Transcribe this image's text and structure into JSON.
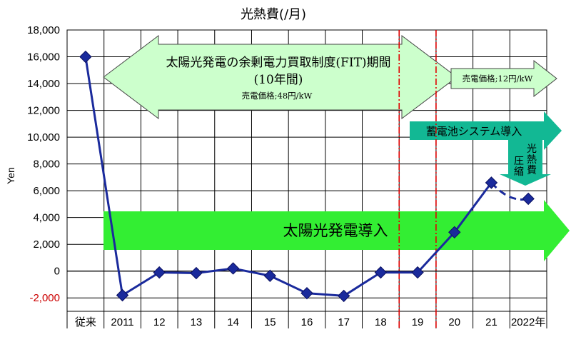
{
  "chart_data": {
    "type": "line",
    "title": "光熱費(/月)",
    "ylabel": "Yen",
    "xlabel": "",
    "ylim": [
      -3000,
      18000
    ],
    "yticks": [
      18000,
      16000,
      14000,
      12000,
      10000,
      8000,
      6000,
      4000,
      2000,
      0,
      -2000
    ],
    "ytick_labels": [
      "18,000",
      "16,000",
      "14,000",
      "12,000",
      "10,000",
      "8,000",
      "6,000",
      "4,000",
      "2,000",
      "0",
      "-2,000"
    ],
    "categories": [
      "従来",
      "2011",
      "12",
      "13",
      "14",
      "15",
      "16",
      "17",
      "18",
      "19",
      "20",
      "21",
      "2022年"
    ],
    "series": [
      {
        "name": "",
        "values": [
          16000,
          -1800,
          -100,
          -150,
          200,
          -350,
          -1650,
          -1850,
          -100,
          -100,
          2900,
          6600,
          5400
        ],
        "color": "#1a2a9c",
        "marker": "diamond",
        "dashed_last_segment": true
      }
    ],
    "vertical_markers": [
      {
        "after_category": "18",
        "color": "#e00000",
        "style": "dash-dot"
      },
      {
        "after_category": "19",
        "color": "#e00000",
        "style": "dash-dot"
      }
    ],
    "grid": true,
    "legend": "none",
    "annotations": {
      "fit_period_line1": "太陽光発電の余剰電力買取制度(FIT)期間",
      "fit_period_line2": "(10年間)",
      "fit_price": "売電価格;48円/kW",
      "post_fit_price": "売電価格;12円/kW",
      "battery_intro": "蓄電池システム導入",
      "cost_compression": "光熱費圧縮",
      "solar_intro": "太陽光発電導入"
    },
    "colors": {
      "light_green": "#ccffcc",
      "bright_green": "#33ee33",
      "teal": "#12b894",
      "line": "#1a2a9c",
      "marker_line": "#e00000",
      "negative_tick": "#cc0000"
    }
  }
}
